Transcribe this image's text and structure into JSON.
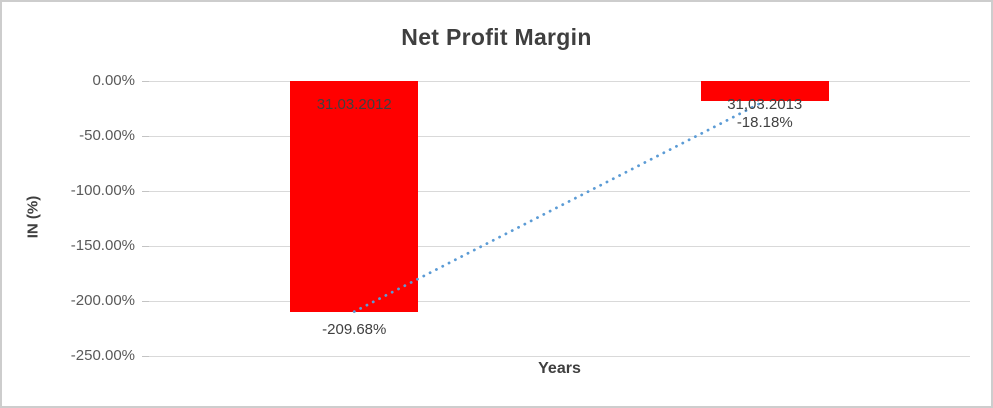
{
  "chart_data": {
    "type": "bar",
    "title": "Net Profit Margin",
    "xlabel": "Years",
    "ylabel": "IN (%)",
    "categories": [
      "31.03.2012",
      "31,03.2013"
    ],
    "series": [
      {
        "name": "Net Profit Margin",
        "values": [
          -209.68,
          -18.18
        ]
      }
    ],
    "value_labels": [
      "-209.68%",
      "-18.18%"
    ],
    "yticks": {
      "values": [
        0,
        -50,
        -100,
        -150,
        -200,
        -250
      ],
      "labels": [
        "0.00%",
        "-50.00%",
        "-100.00%",
        "-150.00%",
        "-200.00%",
        "-250.00%"
      ]
    },
    "ylim": [
      -250,
      0
    ],
    "grid": true,
    "legend": false,
    "colors": {
      "bar": "#FF0000",
      "trendline": "#5B9BD5",
      "gridline": "#D9D9D9",
      "label": "#404040",
      "tick_text": "#595959"
    },
    "trendline": {
      "type": "linear",
      "style": "dotted",
      "from_value": -209.68,
      "to_value": -18.18
    }
  }
}
